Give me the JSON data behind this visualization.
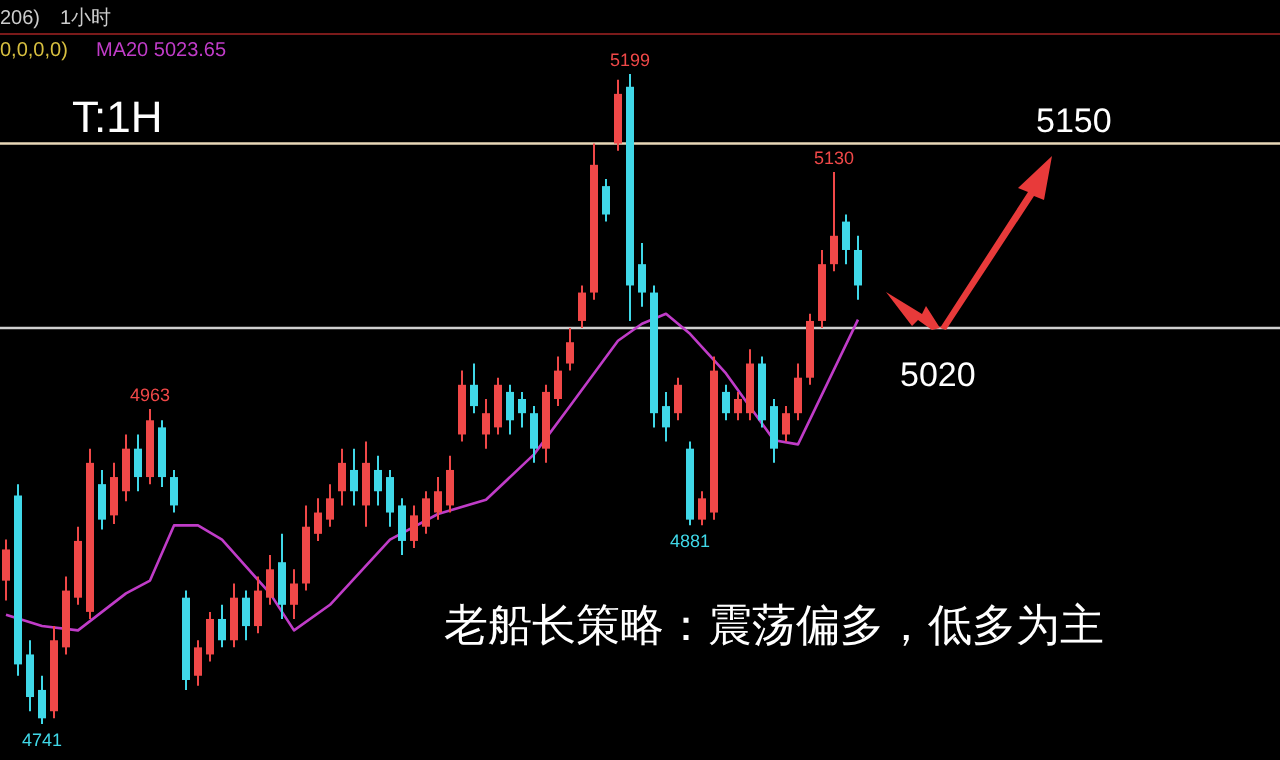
{
  "chart_data": {
    "type": "candlestick",
    "categories": [
      null,
      null,
      null,
      null,
      null,
      null,
      null,
      null,
      null,
      null,
      null,
      null,
      null,
      null,
      null,
      null,
      null,
      null,
      null,
      null,
      null,
      null,
      null,
      null,
      null,
      null,
      null,
      null,
      null,
      null,
      null,
      null,
      null,
      null,
      null,
      null,
      null,
      null,
      null,
      null,
      null,
      null,
      null,
      null,
      null,
      null,
      null,
      null,
      null,
      null,
      null,
      null,
      null,
      null,
      null,
      null,
      null,
      null,
      null,
      null,
      null,
      null,
      null,
      null,
      null,
      null,
      null,
      null,
      null,
      null,
      null,
      null
    ],
    "ohlc": [
      [
        4842,
        4871,
        4828,
        4864
      ],
      [
        4902,
        4910,
        4775,
        4783
      ],
      [
        4790,
        4800,
        4750,
        4760
      ],
      [
        4765,
        4775,
        4741,
        4745
      ],
      [
        4750,
        4810,
        4745,
        4800
      ],
      [
        4795,
        4845,
        4790,
        4835
      ],
      [
        4830,
        4880,
        4825,
        4870
      ],
      [
        4820,
        4935,
        4815,
        4925
      ],
      [
        4910,
        4920,
        4878,
        4885
      ],
      [
        4888,
        4925,
        4882,
        4915
      ],
      [
        4905,
        4945,
        4898,
        4935
      ],
      [
        4935,
        4945,
        4905,
        4915
      ],
      [
        4915,
        4963,
        4910,
        4955
      ],
      [
        4950,
        4955,
        4908,
        4915
      ],
      [
        4915,
        4920,
        4890,
        4895
      ],
      [
        4830,
        4835,
        4765,
        4772
      ],
      [
        4775,
        4800,
        4768,
        4795
      ],
      [
        4790,
        4820,
        4785,
        4815
      ],
      [
        4815,
        4825,
        4795,
        4800
      ],
      [
        4800,
        4840,
        4795,
        4830
      ],
      [
        4830,
        4835,
        4800,
        4810
      ],
      [
        4810,
        4845,
        4805,
        4835
      ],
      [
        4830,
        4860,
        4825,
        4850
      ],
      [
        4855,
        4875,
        4815,
        4825
      ],
      [
        4825,
        4850,
        4815,
        4840
      ],
      [
        4840,
        4895,
        4835,
        4880
      ],
      [
        4875,
        4900,
        4870,
        4890
      ],
      [
        4885,
        4910,
        4880,
        4900
      ],
      [
        4905,
        4935,
        4895,
        4925
      ],
      [
        4920,
        4935,
        4895,
        4905
      ],
      [
        4895,
        4940,
        4880,
        4925
      ],
      [
        4920,
        4930,
        4895,
        4905
      ],
      [
        4915,
        4920,
        4880,
        4890
      ],
      [
        4895,
        4900,
        4860,
        4870
      ],
      [
        4870,
        4895,
        4865,
        4888
      ],
      [
        4880,
        4905,
        4875,
        4900
      ],
      [
        4890,
        4915,
        4885,
        4905
      ],
      [
        4895,
        4930,
        4890,
        4920
      ],
      [
        4945,
        4990,
        4940,
        4980
      ],
      [
        4980,
        4995,
        4960,
        4965
      ],
      [
        4945,
        4970,
        4935,
        4960
      ],
      [
        4950,
        4985,
        4945,
        4980
      ],
      [
        4975,
        4980,
        4945,
        4955
      ],
      [
        4970,
        4975,
        4950,
        4960
      ],
      [
        4960,
        4965,
        4925,
        4935
      ],
      [
        4935,
        4980,
        4925,
        4975
      ],
      [
        4970,
        5000,
        4965,
        4990
      ],
      [
        4995,
        5020,
        4990,
        5010
      ],
      [
        5025,
        5050,
        5020,
        5045
      ],
      [
        5045,
        5150,
        5040,
        5135
      ],
      [
        5120,
        5125,
        5095,
        5100
      ],
      [
        5150,
        5195,
        5145,
        5185
      ],
      [
        5190,
        5199,
        5025,
        5050
      ],
      [
        5065,
        5080,
        5035,
        5045
      ],
      [
        5045,
        5050,
        4950,
        4960
      ],
      [
        4965,
        4975,
        4940,
        4950
      ],
      [
        4960,
        4985,
        4955,
        4980
      ],
      [
        4935,
        4940,
        4881,
        4885
      ],
      [
        4885,
        4905,
        4881,
        4900
      ],
      [
        4890,
        5000,
        4885,
        4990
      ],
      [
        4975,
        4980,
        4955,
        4960
      ],
      [
        4960,
        4975,
        4955,
        4970
      ],
      [
        4960,
        5005,
        4955,
        4995
      ],
      [
        4995,
        5000,
        4950,
        4955
      ],
      [
        4965,
        4970,
        4925,
        4935
      ],
      [
        4945,
        4965,
        4940,
        4960
      ],
      [
        4960,
        4995,
        4955,
        4985
      ],
      [
        4985,
        5030,
        4980,
        5025
      ],
      [
        5025,
        5075,
        5020,
        5065
      ],
      [
        5065,
        5130,
        5060,
        5085
      ],
      [
        5095,
        5100,
        5065,
        5075
      ],
      [
        5075,
        5085,
        5040,
        5050
      ]
    ],
    "colors": [
      "#f04848",
      "#40d8e8",
      "#40d8e8",
      "#40d8e8",
      "#f04848",
      "#f04848",
      "#f04848",
      "#f04848",
      "#40d8e8",
      "#f04848",
      "#f04848",
      "#40d8e8",
      "#f04848",
      "#40d8e8",
      "#40d8e8",
      "#40d8e8",
      "#f04848",
      "#f04848",
      "#40d8e8",
      "#f04848",
      "#40d8e8",
      "#f04848",
      "#f04848",
      "#40d8e8",
      "#f04848",
      "#f04848",
      "#f04848",
      "#f04848",
      "#f04848",
      "#40d8e8",
      "#f04848",
      "#40d8e8",
      "#40d8e8",
      "#40d8e8",
      "#f04848",
      "#f04848",
      "#f04848",
      "#f04848",
      "#f04848",
      "#40d8e8",
      "#f04848",
      "#f04848",
      "#40d8e8",
      "#40d8e8",
      "#40d8e8",
      "#f04848",
      "#f04848",
      "#f04848",
      "#f04848",
      "#f04848",
      "#40d8e8",
      "#f04848",
      "#40d8e8",
      "#40d8e8",
      "#40d8e8",
      "#40d8e8",
      "#f04848",
      "#40d8e8",
      "#f04848",
      "#f04848",
      "#40d8e8",
      "#f04848",
      "#f04848",
      "#40d8e8",
      "#40d8e8",
      "#f04848",
      "#f04848",
      "#f04848",
      "#f04848",
      "#f04848",
      "#40d8e8",
      "#40d8e8"
    ],
    "series": [
      {
        "type": "line",
        "color": "#c03cc8",
        "values": [
          4818,
          null,
          null,
          4810,
          null,
          null,
          4807,
          null,
          null,
          null,
          4833,
          null,
          4842,
          null,
          4881,
          null,
          4881,
          null,
          4871,
          null,
          null,
          null,
          4833,
          null,
          4807,
          null,
          null,
          4825,
          null,
          null,
          null,
          null,
          4871,
          null,
          null,
          null,
          4889,
          null,
          null,
          null,
          4899,
          null,
          null,
          null,
          4931,
          null,
          null,
          4965,
          null,
          null,
          null,
          5011,
          null,
          5023,
          null,
          5030,
          null,
          5016,
          null,
          null,
          4988,
          null,
          null,
          null,
          4941,
          null,
          4938,
          null,
          null,
          null,
          null,
          5026
        ]
      }
    ],
    "ref_lines": [
      {
        "axis": "y",
        "value": 5150,
        "label": "5150",
        "color": "#e8d8b8"
      },
      {
        "axis": "y",
        "value": 5020,
        "label": "5020",
        "color": "#d0d0d0"
      }
    ],
    "annotations": [
      "206)",
      "1小时",
      "0,0,0,0)",
      "MA20 5023.65",
      "T:1H",
      "老船长策略：震荡偏多，低多为主",
      {
        "text": "5199",
        "y": 5199
      },
      {
        "text": "4963",
        "y": 4963
      },
      {
        "text": "4741",
        "y": 4741
      },
      {
        "text": "4881",
        "y": 4881
      },
      {
        "text": "5130",
        "y": 5130
      }
    ]
  }
}
